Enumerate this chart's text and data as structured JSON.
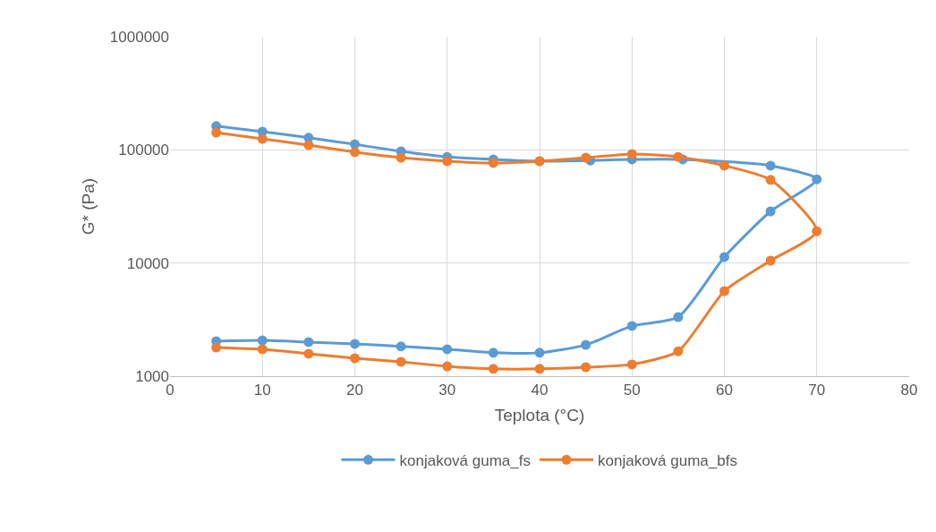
{
  "chart_data": {
    "type": "line",
    "xlabel": "Teplota (°C)",
    "ylabel": "G* (Pa)",
    "xlim": [
      0,
      80
    ],
    "xticks": [
      0,
      10,
      20,
      30,
      40,
      50,
      60,
      70,
      80
    ],
    "ylim": [
      1000,
      1000000
    ],
    "yticks": [
      1000,
      10000,
      100000,
      1000000
    ],
    "log": "y",
    "grid": true,
    "legend": "bottom",
    "marker": "circle",
    "line_style": "solid",
    "series": [
      {
        "name": "konjaková guma_fs",
        "color": "#5b9bd5",
        "x": [
          5,
          10,
          15,
          20,
          25,
          30,
          35,
          40,
          45,
          50,
          55,
          60,
          65,
          70,
          65,
          55.5,
          50,
          45.5,
          40,
          35,
          30,
          25,
          20,
          15,
          10,
          5
        ],
        "values": [
          2040,
          2070,
          2000,
          1930,
          1830,
          1730,
          1610,
          1610,
          1890,
          2780,
          3330,
          11300,
          28600,
          55000,
          72600,
          82400,
          82400,
          80600,
          79500,
          82400,
          86700,
          97000,
          112000,
          128000,
          145000,
          162000
        ]
      },
      {
        "name": "konjaková guma_bfs",
        "color": "#ed7d31",
        "x": [
          5,
          10,
          15,
          20,
          25,
          30,
          35,
          40,
          45,
          50,
          55,
          60,
          65,
          70,
          65,
          60,
          55,
          50,
          45,
          40,
          35,
          30,
          25,
          20,
          15,
          10,
          5
        ],
        "values": [
          1790,
          1730,
          1580,
          1440,
          1340,
          1220,
          1160,
          1160,
          1200,
          1270,
          1660,
          5650,
          10500,
          19100,
          54300,
          72600,
          86700,
          91900,
          85300,
          79500,
          76600,
          79500,
          85300,
          95500,
          110000,
          125000,
          142000
        ]
      }
    ]
  }
}
